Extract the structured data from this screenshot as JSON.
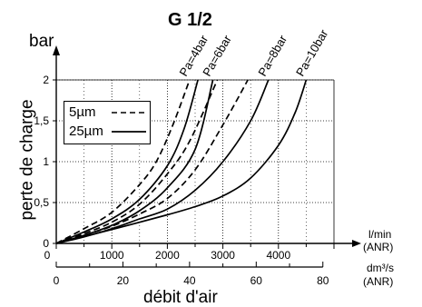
{
  "chart_data": {
    "type": "line",
    "title": "G 1/2",
    "ylabel_unit": "bar",
    "ylabel": "perte de charge",
    "xlabel": "débit d'air",
    "x_unit_top": [
      "l/min",
      "(ANR)"
    ],
    "x_unit_bottom": [
      "dm³/s",
      "(ANR)"
    ],
    "xlim": [
      0,
      5000
    ],
    "ylim": [
      0,
      2
    ],
    "x_ticks": [
      0,
      1000,
      2000,
      3000,
      4000
    ],
    "x_tick_labels": [
      "0",
      "1000",
      "2000",
      "3000",
      "4000"
    ],
    "x2_tick_labels": [
      "0",
      "20",
      "40",
      "60",
      "80"
    ],
    "y_ticks": [
      0,
      0.5,
      1,
      1.5,
      2
    ],
    "y_tick_labels": [
      "0",
      "0,5",
      "1",
      "1,5",
      "2"
    ],
    "grid": true,
    "legend": {
      "placement": "top-left",
      "entries": [
        {
          "name": "5µm",
          "style": "dashed"
        },
        {
          "name": "25µm",
          "style": "solid"
        }
      ]
    },
    "pressure_labels": [
      "Pa=4bar",
      "Pa=6bar",
      "Pa=8bar",
      "Pa=10bar"
    ],
    "series": [
      {
        "pressure": "Pa=4bar",
        "filter": "5µm",
        "style": "dashed",
        "x": [
          0,
          500,
          1000,
          1500,
          1800,
          2100,
          2400
        ],
        "y": [
          0,
          0.18,
          0.38,
          0.72,
          1.0,
          1.45,
          2.0
        ]
      },
      {
        "pressure": "Pa=4bar",
        "filter": "25µm",
        "style": "solid",
        "x": [
          0,
          500,
          1000,
          1500,
          2000,
          2300,
          2550
        ],
        "y": [
          0,
          0.14,
          0.3,
          0.54,
          0.95,
          1.4,
          2.0
        ]
      },
      {
        "pressure": "Pa=6bar",
        "filter": "5µm",
        "style": "dashed",
        "x": [
          0,
          500,
          1000,
          1500,
          2000,
          2400,
          2900
        ],
        "y": [
          0,
          0.12,
          0.26,
          0.48,
          0.85,
          1.25,
          2.0
        ]
      },
      {
        "pressure": "Pa=6bar",
        "filter": "25µm",
        "style": "solid",
        "x": [
          0,
          500,
          1000,
          1500,
          2000,
          2500,
          2820
        ],
        "y": [
          0,
          0.1,
          0.22,
          0.4,
          0.68,
          1.15,
          2.0
        ]
      },
      {
        "pressure": "Pa=8bar",
        "filter": "5µm",
        "style": "dashed",
        "x": [
          0,
          500,
          1000,
          1500,
          2000,
          2500,
          3000,
          3450
        ],
        "y": [
          0,
          0.1,
          0.21,
          0.36,
          0.55,
          0.9,
          1.45,
          2.0
        ]
      },
      {
        "pressure": "Pa=8bar",
        "filter": "25µm",
        "style": "solid",
        "x": [
          0,
          500,
          1000,
          1500,
          2000,
          2500,
          3000,
          3500,
          3820
        ],
        "y": [
          0,
          0.08,
          0.18,
          0.3,
          0.42,
          0.65,
          1.0,
          1.5,
          2.0
        ]
      },
      {
        "pressure": "Pa=10bar",
        "filter": "25µm",
        "style": "solid",
        "x": [
          0,
          1000,
          2000,
          2500,
          3000,
          3500,
          4000,
          4300,
          4500
        ],
        "y": [
          0,
          0.17,
          0.35,
          0.45,
          0.58,
          0.8,
          1.2,
          1.6,
          2.0
        ]
      }
    ]
  }
}
